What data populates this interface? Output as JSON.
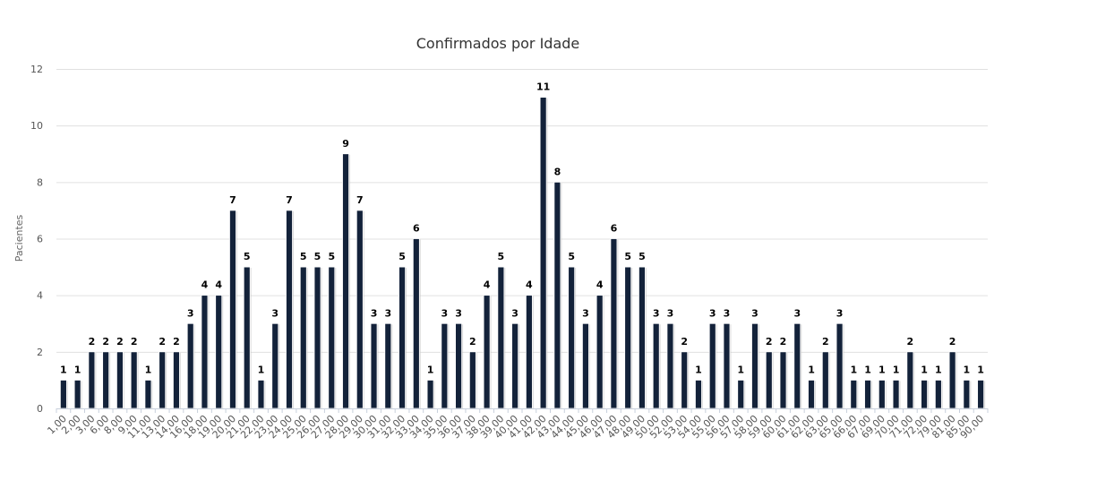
{
  "chart_data": {
    "type": "bar",
    "title": "Confirmados por Idade",
    "xlabel": "",
    "ylabel": "Pacientes",
    "ylim": [
      0,
      12
    ],
    "yticks": [
      0,
      2,
      4,
      6,
      8,
      10,
      12
    ],
    "grid": true,
    "legend": "none",
    "bar_color": "#13223a",
    "categories": [
      "1,00",
      "2,00",
      "3,00",
      "6,00",
      "8,00",
      "9,00",
      "11,00",
      "13,00",
      "14,00",
      "16,00",
      "18,00",
      "19,00",
      "20,00",
      "21,00",
      "22,00",
      "23,00",
      "24,00",
      "25,00",
      "26,00",
      "27,00",
      "28,00",
      "29,00",
      "30,00",
      "31,00",
      "32,00",
      "33,00",
      "34,00",
      "35,00",
      "36,00",
      "37,00",
      "38,00",
      "39,00",
      "40,00",
      "41,00",
      "42,00",
      "43,00",
      "44,00",
      "45,00",
      "46,00",
      "47,00",
      "48,00",
      "49,00",
      "50,00",
      "52,00",
      "53,00",
      "54,00",
      "55,00",
      "56,00",
      "57,00",
      "58,00",
      "59,00",
      "60,00",
      "61,00",
      "62,00",
      "63,00",
      "65,00",
      "66,00",
      "67,00",
      "69,00",
      "70,00",
      "71,00",
      "72,00",
      "79,00",
      "81,00",
      "85,00",
      "90,00"
    ],
    "values": [
      1,
      1,
      2,
      2,
      2,
      2,
      1,
      2,
      2,
      3,
      4,
      4,
      7,
      5,
      1,
      3,
      7,
      5,
      5,
      5,
      9,
      7,
      3,
      3,
      5,
      6,
      1,
      3,
      3,
      2,
      4,
      5,
      3,
      4,
      11,
      8,
      5,
      3,
      4,
      6,
      5,
      5,
      3,
      3,
      2,
      1,
      3,
      3,
      1,
      3,
      2,
      2,
      3,
      1,
      2,
      3,
      1,
      1,
      1,
      1,
      2,
      1,
      1,
      2,
      1,
      1
    ]
  }
}
